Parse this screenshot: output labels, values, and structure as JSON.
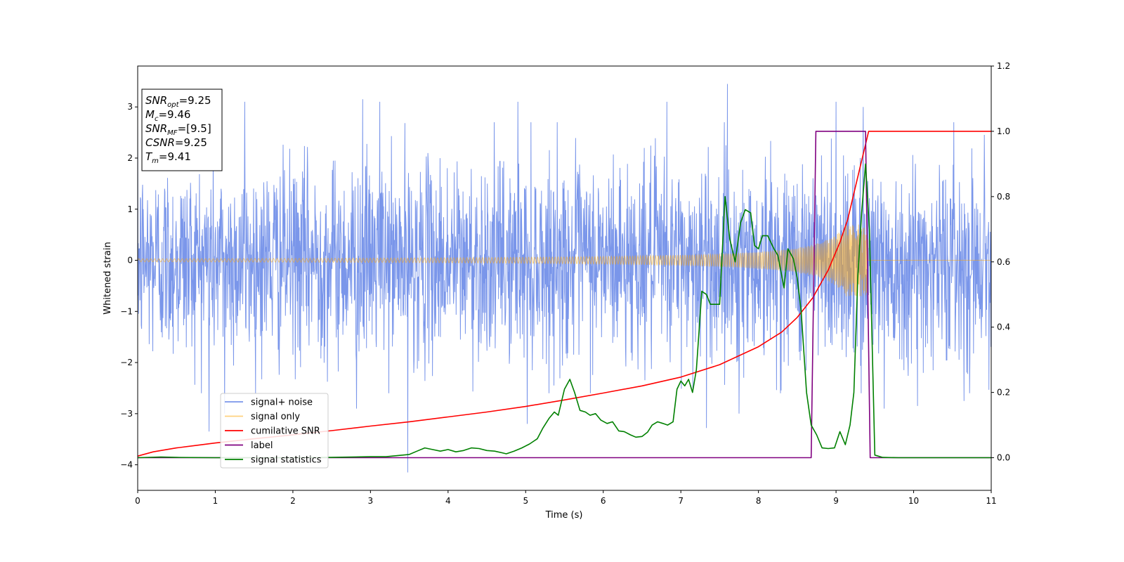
{
  "chart_data": {
    "type": "line",
    "title": "",
    "xlabel": "Time (s)",
    "ylabel": "Whitened strain",
    "xlim": [
      0,
      11
    ],
    "ylim": [
      -4.5,
      3.8
    ],
    "y2lim": [
      -0.1,
      1.2
    ],
    "xticks": [
      "0",
      "1",
      "2",
      "3",
      "4",
      "5",
      "6",
      "7",
      "8",
      "9",
      "10",
      "11"
    ],
    "yticks": [
      "3",
      "2",
      "1",
      "0",
      "−1",
      "−2",
      "−3",
      "−4"
    ],
    "y2ticks": [
      "1.2",
      "1.0",
      "0.8",
      "0.6",
      "0.4",
      "0.2",
      "0.0"
    ],
    "grid": false,
    "legend_position": "lower-left",
    "annotation": {
      "lines": [
        {
          "base": "SNR",
          "sub": "opt",
          "value": "=9.25"
        },
        {
          "base": "M",
          "sub": "c",
          "value": "=9.46"
        },
        {
          "base": "SNR",
          "sub": "MF",
          "value": "=[9.5]"
        },
        {
          "base": "CSNR",
          "sub": "",
          "value": "=9.25"
        },
        {
          "base": "T",
          "sub": "m",
          "value": "=9.41"
        }
      ]
    },
    "series": [
      {
        "name": "signal+ noise",
        "axis": "left",
        "color": "#4169e1",
        "kind": "noise",
        "envelope_sigma": 0.95,
        "spikes": [
          {
            "x": 0.92,
            "y": -3.35
          },
          {
            "x": 1.12,
            "y": -3.0
          },
          {
            "x": 1.38,
            "y": 3.1
          },
          {
            "x": 2.82,
            "y": -2.9
          },
          {
            "x": 2.9,
            "y": 3.15
          },
          {
            "x": 3.48,
            "y": -4.15
          },
          {
            "x": 3.12,
            "y": 3.1
          },
          {
            "x": 4.9,
            "y": 3.1
          },
          {
            "x": 5.02,
            "y": -3.2
          },
          {
            "x": 6.82,
            "y": 3.1
          },
          {
            "x": 7.33,
            "y": -3.28
          },
          {
            "x": 7.6,
            "y": 3.45
          },
          {
            "x": 7.75,
            "y": -3.0
          },
          {
            "x": 9.0,
            "y": 3.1
          },
          {
            "x": 9.35,
            "y": 3.0
          },
          {
            "x": 9.62,
            "y": -2.9
          },
          {
            "x": 10.05,
            "y": -2.85
          },
          {
            "x": 10.65,
            "y": -2.75
          }
        ]
      },
      {
        "name": "signal only",
        "axis": "left",
        "color": "#ffa500",
        "kind": "chirp",
        "merger_time": 9.41
      },
      {
        "name": "cumilative SNR",
        "axis": "right",
        "color": "#ff0000",
        "x": [
          0,
          0.2,
          0.5,
          1.0,
          1.5,
          2.0,
          2.5,
          3.0,
          3.5,
          4.0,
          4.5,
          5.0,
          5.5,
          6.0,
          6.5,
          7.0,
          7.5,
          8.0,
          8.3,
          8.5,
          8.7,
          8.9,
          9.05,
          9.15,
          9.25,
          9.32,
          9.38,
          9.42,
          11.0
        ],
        "y": [
          0.005,
          0.018,
          0.03,
          0.045,
          0.058,
          0.07,
          0.083,
          0.097,
          0.11,
          0.125,
          0.14,
          0.157,
          0.177,
          0.198,
          0.22,
          0.247,
          0.285,
          0.34,
          0.385,
          0.43,
          0.49,
          0.575,
          0.66,
          0.73,
          0.83,
          0.9,
          0.96,
          1.0,
          1.0
        ]
      },
      {
        "name": "label",
        "axis": "right",
        "color": "#800080",
        "x": [
          0,
          8.68,
          8.74,
          9.38,
          9.44,
          11.0
        ],
        "y": [
          0.0,
          0.0,
          1.0,
          1.0,
          0.0,
          0.0
        ]
      },
      {
        "name": "signal statistics",
        "axis": "right",
        "color": "#008000",
        "x": [
          0,
          0.3,
          0.5,
          1.0,
          2.0,
          2.5,
          3.0,
          3.2,
          3.5,
          3.6,
          3.7,
          3.8,
          3.9,
          4.0,
          4.1,
          4.2,
          4.3,
          4.4,
          4.5,
          4.6,
          4.7,
          4.75,
          4.85,
          4.95,
          5.05,
          5.15,
          5.22,
          5.3,
          5.37,
          5.42,
          5.5,
          5.57,
          5.63,
          5.7,
          5.77,
          5.83,
          5.9,
          5.97,
          6.05,
          6.12,
          6.2,
          6.27,
          6.35,
          6.42,
          6.5,
          6.57,
          6.63,
          6.7,
          6.77,
          6.83,
          6.9,
          6.95,
          7.0,
          7.05,
          7.1,
          7.15,
          7.2,
          7.27,
          7.33,
          7.38,
          7.43,
          7.5,
          7.57,
          7.63,
          7.7,
          7.77,
          7.83,
          7.9,
          7.95,
          8.0,
          8.05,
          8.12,
          8.2,
          8.25,
          8.33,
          8.38,
          8.45,
          8.5,
          8.55,
          8.62,
          8.68,
          8.75,
          8.82,
          8.9,
          8.98,
          9.05,
          9.12,
          9.18,
          9.23,
          9.28,
          9.33,
          9.38,
          9.43,
          9.5,
          9.6,
          9.8,
          11.0
        ],
        "y": [
          0.0,
          0.002,
          0.001,
          0.0,
          0.0,
          0.001,
          0.003,
          0.003,
          0.01,
          0.02,
          0.03,
          0.025,
          0.02,
          0.025,
          0.018,
          0.022,
          0.03,
          0.028,
          0.022,
          0.02,
          0.015,
          0.012,
          0.02,
          0.03,
          0.042,
          0.058,
          0.09,
          0.12,
          0.14,
          0.13,
          0.21,
          0.24,
          0.2,
          0.145,
          0.14,
          0.13,
          0.135,
          0.115,
          0.105,
          0.11,
          0.082,
          0.08,
          0.07,
          0.063,
          0.065,
          0.078,
          0.1,
          0.11,
          0.105,
          0.1,
          0.11,
          0.21,
          0.235,
          0.22,
          0.24,
          0.2,
          0.27,
          0.51,
          0.5,
          0.47,
          0.47,
          0.47,
          0.8,
          0.67,
          0.6,
          0.72,
          0.76,
          0.75,
          0.65,
          0.64,
          0.68,
          0.68,
          0.64,
          0.62,
          0.52,
          0.64,
          0.61,
          0.55,
          0.45,
          0.2,
          0.1,
          0.07,
          0.03,
          0.028,
          0.03,
          0.08,
          0.04,
          0.1,
          0.2,
          0.55,
          0.75,
          0.9,
          0.7,
          0.008,
          0.001,
          0.0,
          0.0
        ]
      }
    ]
  }
}
